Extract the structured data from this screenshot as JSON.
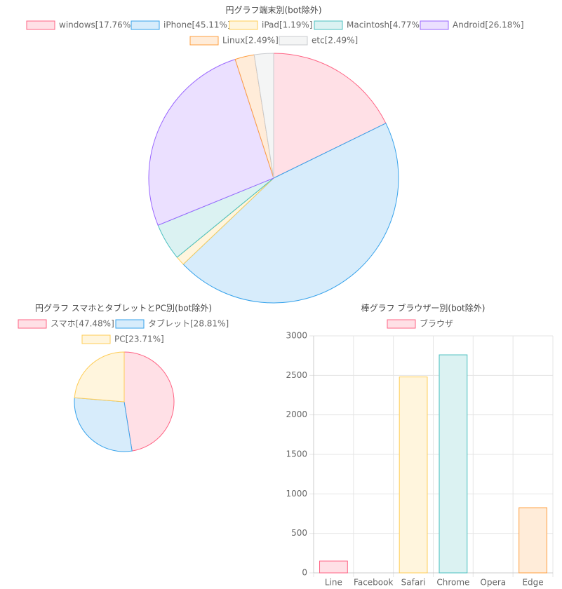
{
  "chart_data": [
    {
      "type": "pie",
      "title": "円グラフ端末別(bot除外)",
      "slices": [
        {
          "label": "windows[17.76%]",
          "value": 17.76,
          "fill": "#ffe0e6",
          "stroke": "#ff6384"
        },
        {
          "label": "iPhone[45.11%]",
          "value": 45.11,
          "fill": "#d7ecfb",
          "stroke": "#36a2eb"
        },
        {
          "label": "iPad[1.19%]",
          "value": 1.19,
          "fill": "#fff5dd",
          "stroke": "#ffcd56"
        },
        {
          "label": "Macintosh[4.77%]",
          "value": 4.77,
          "fill": "#dbf2f2",
          "stroke": "#4bc0c0"
        },
        {
          "label": "Android[26.18%]",
          "value": 26.18,
          "fill": "#ebe0ff",
          "stroke": "#9966ff"
        },
        {
          "label": "Linux[2.49%]",
          "value": 2.49,
          "fill": "#ffecd9",
          "stroke": "#ff9f40"
        },
        {
          "label": "etc[2.49%]",
          "value": 2.49,
          "fill": "#f4f5f5",
          "stroke": "#c9cbcf"
        }
      ]
    },
    {
      "type": "pie",
      "title": "円グラフ スマホとタブレットとPC別(bot除外)",
      "slices": [
        {
          "label": "スマホ[47.48%]",
          "value": 47.48,
          "fill": "#ffe0e6",
          "stroke": "#ff6384"
        },
        {
          "label": "タブレット[28.81%]",
          "value": 28.81,
          "fill": "#d7ecfb",
          "stroke": "#36a2eb"
        },
        {
          "label": "PC[23.71%]",
          "value": 23.71,
          "fill": "#fff5dd",
          "stroke": "#ffcd56"
        }
      ]
    },
    {
      "type": "bar",
      "title": "棒グラフ ブラウザー別(bot除外)",
      "legend": "ブラウザ",
      "categories": [
        "Line",
        "Facebook",
        "Safari",
        "Chrome",
        "Opera",
        "Edge"
      ],
      "values": [
        150,
        0,
        2480,
        2760,
        0,
        825
      ],
      "ylim": [
        0,
        3000
      ],
      "yticks": [
        0,
        500,
        1000,
        1500,
        2000,
        2500,
        3000
      ],
      "fills": [
        "#ffe0e6",
        "#d7ecfb",
        "#fff5dd",
        "#dbf2f2",
        "#ebe0ff",
        "#ffecd9"
      ],
      "strokes": [
        "#ff6384",
        "#36a2eb",
        "#ffcd56",
        "#4bc0c0",
        "#9966ff",
        "#ff9f40"
      ]
    }
  ]
}
